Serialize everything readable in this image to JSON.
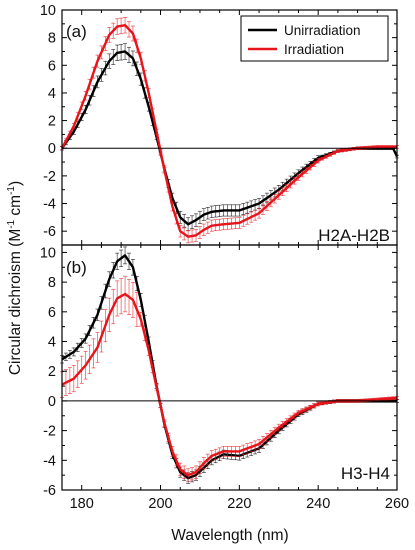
{
  "figure": {
    "ylabel_main": "Circular dichroism (M",
    "ylabel_sup1": "-1",
    "ylabel_mid": " cm",
    "ylabel_sup2": "-1",
    "ylabel_end": ")"
  },
  "chart_data": [
    {
      "type": "line",
      "panel_label": "(a)",
      "annotation": "H2A-H2B",
      "xlabel": "",
      "ylabel": "Circular dichroism (M-1 cm-1)",
      "xlim": [
        175,
        260
      ],
      "ylim": [
        -7,
        10
      ],
      "yticks": [
        -6,
        -4,
        -2,
        0,
        2,
        4,
        6,
        8,
        10
      ],
      "xticks": [
        180,
        200,
        220,
        240,
        260
      ],
      "xtick_labels_shown": false,
      "legend": "top-right",
      "grid": false,
      "series": [
        {
          "name": "Unirradiation",
          "color": "#000000",
          "x": [
            175,
            178,
            181,
            184,
            187,
            189,
            191,
            193,
            195,
            197,
            199,
            201,
            203,
            205,
            207,
            209,
            211,
            213,
            216,
            220,
            225,
            230,
            235,
            240,
            245,
            250,
            255,
            259,
            260
          ],
          "y": [
            0.0,
            1.2,
            2.8,
            4.8,
            6.3,
            6.9,
            7.0,
            6.5,
            5.0,
            3.0,
            0.8,
            -1.5,
            -3.6,
            -5.0,
            -5.5,
            -5.2,
            -4.8,
            -4.6,
            -4.5,
            -4.5,
            -4.0,
            -3.0,
            -1.8,
            -0.7,
            -0.2,
            0.0,
            0.0,
            0.0,
            -0.6
          ]
        },
        {
          "name": "Irradiation",
          "color": "#e8141b",
          "x": [
            175,
            178,
            181,
            184,
            187,
            189,
            191,
            193,
            195,
            197,
            199,
            201,
            203,
            205,
            207,
            209,
            211,
            213,
            216,
            220,
            225,
            230,
            235,
            240,
            245,
            250,
            255,
            259,
            260
          ],
          "y": [
            0.0,
            1.6,
            3.8,
            6.3,
            8.2,
            8.8,
            8.9,
            8.3,
            6.5,
            4.0,
            1.2,
            -1.6,
            -4.2,
            -6.0,
            -6.4,
            -6.3,
            -5.9,
            -5.6,
            -5.5,
            -5.4,
            -4.7,
            -3.4,
            -2.1,
            -0.9,
            -0.2,
            0.0,
            0.1,
            0.1,
            0.1
          ]
        }
      ]
    },
    {
      "type": "line",
      "panel_label": "(b)",
      "annotation": "H3-H4",
      "xlabel": "Wavelength (nm)",
      "ylabel": "Circular dichroism (M-1 cm-1)",
      "xlim": [
        175,
        260
      ],
      "ylim": [
        -6,
        10.5
      ],
      "yticks": [
        -6,
        -4,
        -2,
        0,
        2,
        4,
        6,
        8,
        10
      ],
      "xticks": [
        180,
        200,
        220,
        240,
        260
      ],
      "xtick_labels_shown": true,
      "grid": false,
      "series": [
        {
          "name": "Unirradiation",
          "color": "#000000",
          "x": [
            175,
            178,
            181,
            184,
            187,
            189,
            191,
            193,
            195,
            197,
            199,
            201,
            203,
            205,
            207,
            209,
            211,
            213,
            216,
            220,
            225,
            230,
            235,
            240,
            245,
            250,
            255,
            260
          ],
          "y": [
            2.8,
            3.3,
            4.2,
            5.8,
            8.2,
            9.4,
            9.8,
            9.0,
            6.8,
            4.0,
            1.0,
            -1.6,
            -3.6,
            -4.8,
            -5.2,
            -5.0,
            -4.5,
            -4.0,
            -3.6,
            -3.7,
            -3.2,
            -2.0,
            -0.9,
            -0.2,
            0.0,
            0.0,
            0.0,
            0.0
          ]
        },
        {
          "name": "Irradiation",
          "color": "#e8141b",
          "x": [
            175,
            178,
            181,
            184,
            187,
            189,
            191,
            193,
            195,
            197,
            199,
            201,
            203,
            205,
            207,
            209,
            211,
            213,
            216,
            220,
            225,
            230,
            235,
            240,
            245,
            250,
            255,
            260
          ],
          "y": [
            1.1,
            1.5,
            2.4,
            3.6,
            5.8,
            6.9,
            7.2,
            6.8,
            5.5,
            3.4,
            0.9,
            -1.5,
            -3.4,
            -4.6,
            -5.0,
            -4.8,
            -4.2,
            -3.7,
            -3.4,
            -3.4,
            -2.9,
            -1.8,
            -0.8,
            -0.2,
            0.0,
            0.0,
            0.1,
            0.2
          ]
        }
      ]
    }
  ]
}
